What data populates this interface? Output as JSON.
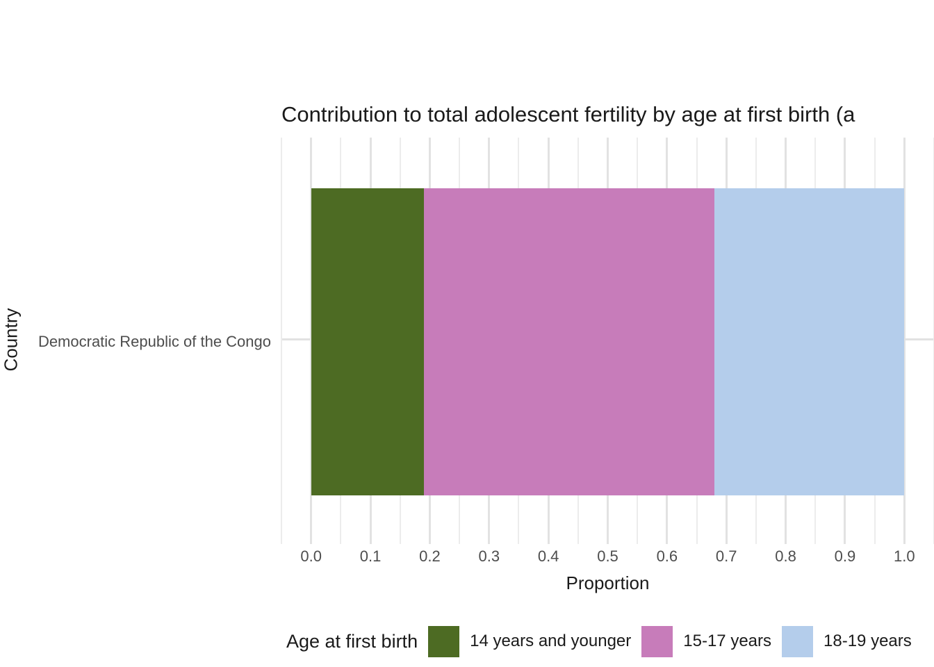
{
  "chart_data": {
    "type": "bar",
    "orientation": "horizontal",
    "stacked": true,
    "title": "Contribution to total adolescent fertility by age at first birth (a",
    "xlabel": "Proportion",
    "ylabel": "Country",
    "categories": [
      "Democratic Republic of the Congo"
    ],
    "series": [
      {
        "name": "14 years and younger",
        "color": "#4D6B23",
        "values": [
          0.19
        ]
      },
      {
        "name": "15-17 years",
        "color": "#C77CBA",
        "values": [
          0.49
        ]
      },
      {
        "name": "18-19 years",
        "color": "#B4CDEB",
        "values": [
          0.32
        ]
      }
    ],
    "xlim": [
      -0.05,
      1.05
    ],
    "x_major_ticks": [
      0.0,
      0.1,
      0.2,
      0.3,
      0.4,
      0.5,
      0.6,
      0.7,
      0.8,
      0.9,
      1.0
    ],
    "x_tick_labels": [
      "0.0",
      "0.1",
      "0.2",
      "0.3",
      "0.4",
      "0.5",
      "0.6",
      "0.7",
      "0.8",
      "0.9",
      "1.0"
    ],
    "x_minor_ticks": [
      -0.05,
      0.05,
      0.15,
      0.25,
      0.35,
      0.45,
      0.55,
      0.65,
      0.75,
      0.85,
      0.95,
      1.05
    ],
    "grid": true,
    "legend_title": "Age at first birth",
    "legend_position": "bottom"
  },
  "style_colors": {
    "grid_major": "#E2E2E2",
    "grid_minor": "#ECECEC",
    "axis_text": "#4D4D4D",
    "text": "#1A1A1A",
    "background": "#FFFFFF"
  }
}
